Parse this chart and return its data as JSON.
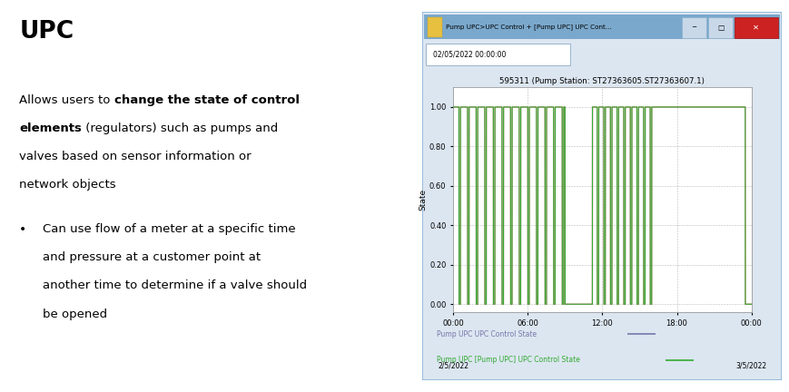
{
  "title": "UPC",
  "legend1": "Pump UPC UPC Control State",
  "legend2": "Pump UPC [Pump UPC] UPC Control State",
  "legend1_color": "#7777aa",
  "legend2_color": "#33aa33",
  "green_line_color": "#33aa33",
  "red_line_color": "#cc4444",
  "bg_color": "#ffffff",
  "window_bg": "#dce6f1",
  "titlebar_bg": "#7aa8cc",
  "chart_bg": "#ffffff",
  "grid_color": "#bbbbbb",
  "window_title": "Pump UPC>UPC Control + [Pump UPC] UPC Cont...",
  "date_label": "02/05/2022 00:00:00",
  "chart_title": "595311 (Pump Station: ST27363605.ST27363607.1)",
  "ylabel": "State",
  "yticks": [
    0.0,
    0.2,
    0.4,
    0.6,
    0.8,
    1.0
  ],
  "xtick_positions": [
    0,
    6,
    12,
    18,
    24
  ],
  "xtick_labels": [
    "00:00",
    "06:00",
    "12:00",
    "18:00",
    "00:00"
  ]
}
